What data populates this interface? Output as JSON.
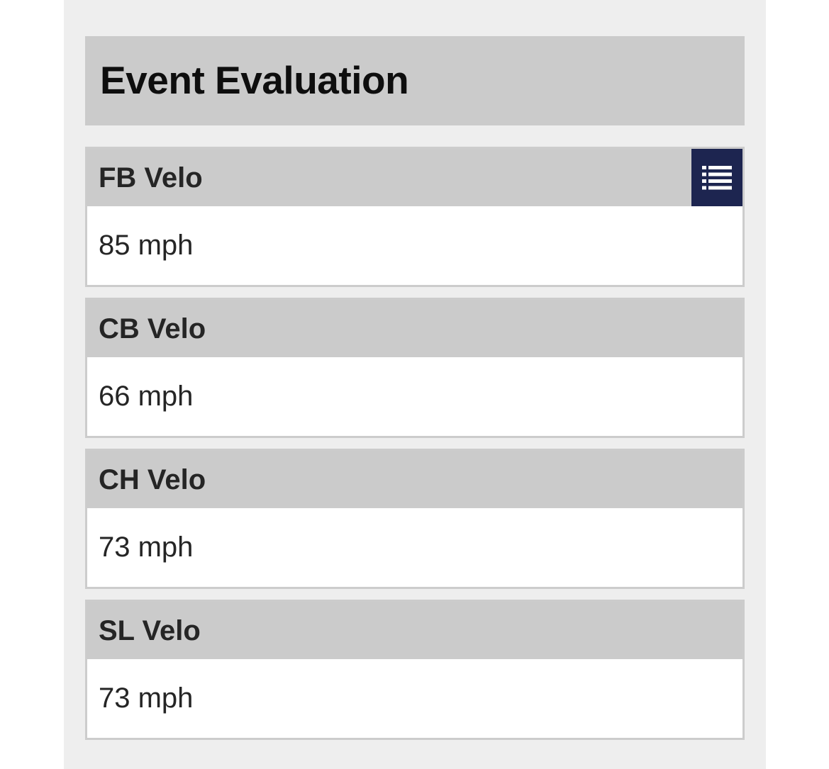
{
  "header": {
    "title": "Event Evaluation"
  },
  "metrics": [
    {
      "label": "FB Velo",
      "value": "85 mph"
    },
    {
      "label": "CB Velo",
      "value": "66 mph"
    },
    {
      "label": "CH Velo",
      "value": "73 mph"
    },
    {
      "label": "SL Velo",
      "value": "73 mph"
    }
  ],
  "icons": {
    "list_toggle": "list-icon"
  },
  "colors": {
    "panel_background": "#eeeeee",
    "header_background": "#cbcbcb",
    "button_background": "#1d2550",
    "card_border": "#cccccc"
  }
}
